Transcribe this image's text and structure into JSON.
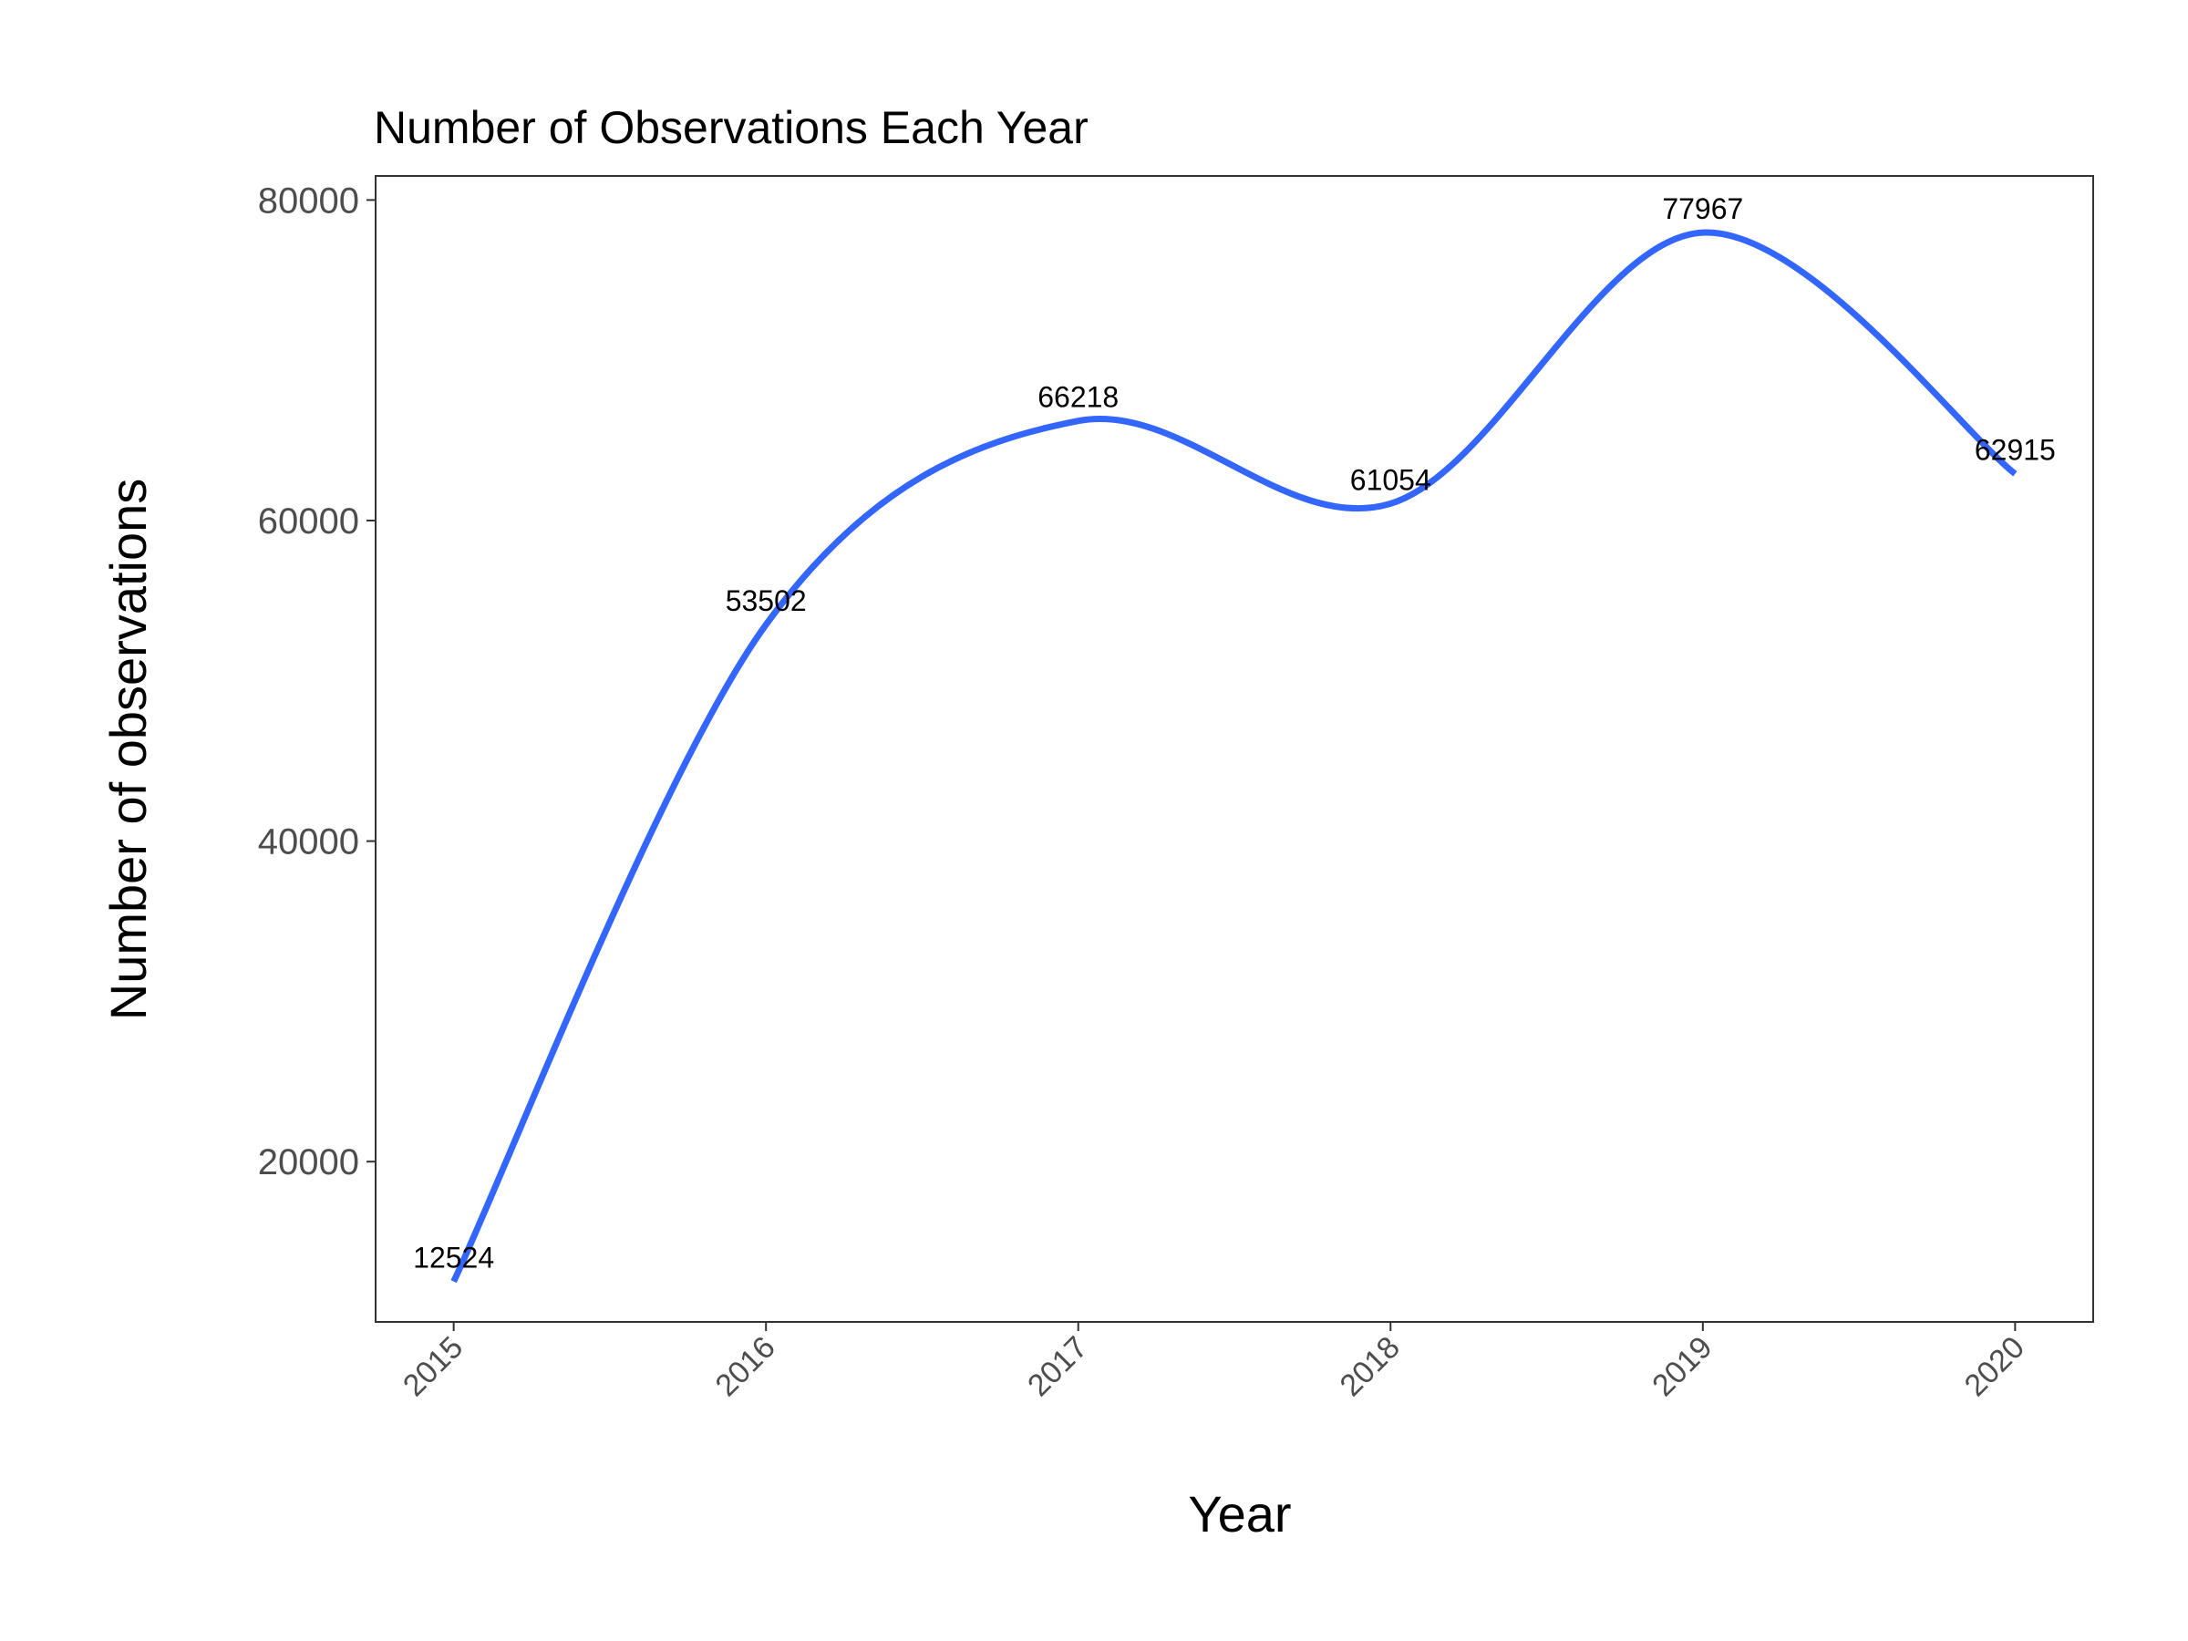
{
  "chart_data": {
    "type": "line",
    "title": "Number of Observations Each Year",
    "xlabel": "Year",
    "ylabel": "Number of observations",
    "x": [
      2015,
      2016,
      2017,
      2018,
      2019,
      2020
    ],
    "x_tick_labels": [
      "2015",
      "2016",
      "2017",
      "2018",
      "2019",
      "2020"
    ],
    "y_tick_labels": [
      "20000",
      "40000",
      "60000",
      "80000"
    ],
    "y_ticks": [
      20000,
      40000,
      60000,
      80000
    ],
    "series": [
      {
        "values": [
          12524,
          53502,
          66218,
          61054,
          77967,
          62915
        ],
        "labels": [
          "12524",
          "53502",
          "66218",
          "61054",
          "77967",
          "62915"
        ],
        "color": "#3366FF",
        "smoothed": true
      }
    ],
    "xlim": [
      2014.75,
      2020.25
    ],
    "ylim": [
      10000,
      81500
    ],
    "grid": false,
    "legend": "none",
    "x_tick_rotation_deg": 45
  }
}
